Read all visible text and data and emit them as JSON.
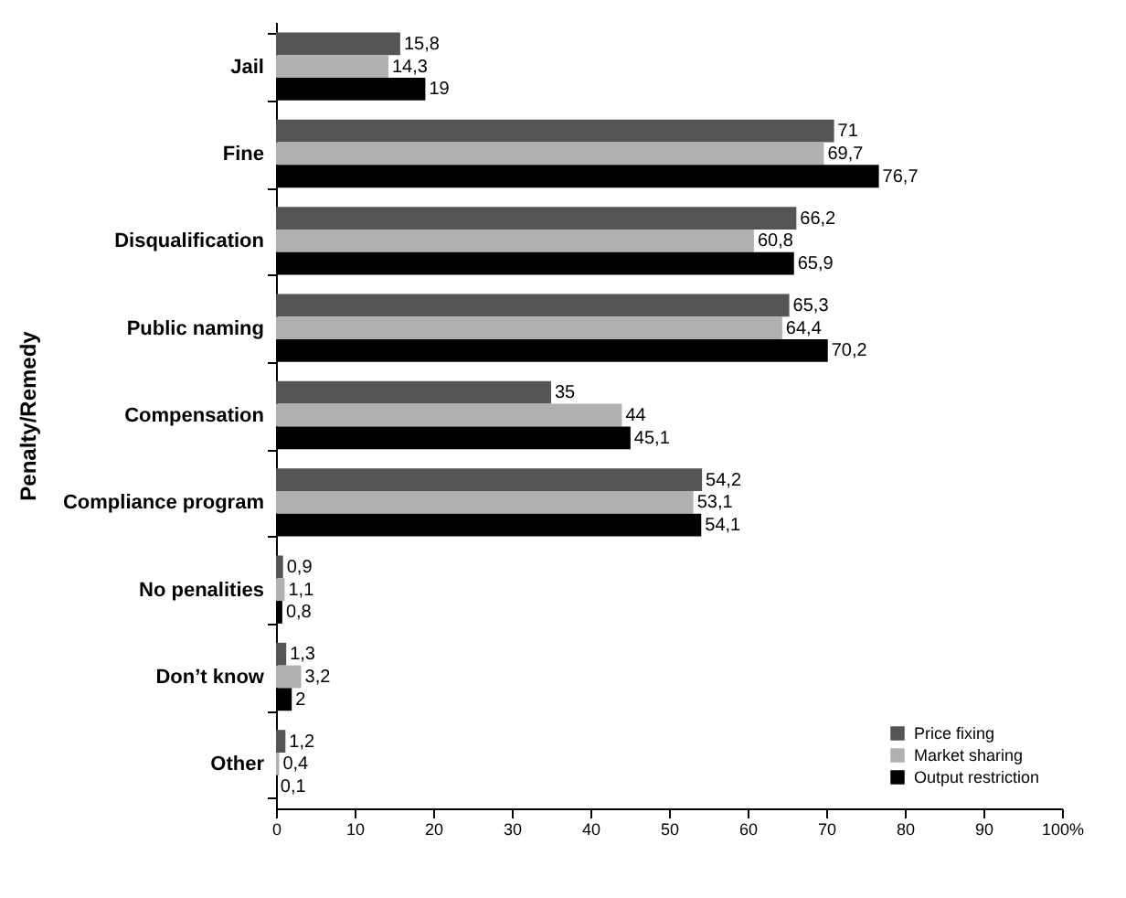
{
  "chart_data": {
    "type": "bar",
    "orientation": "horizontal",
    "ylabel": "Penalty/Remedy",
    "categories": [
      "Jail",
      "Fine",
      "Disqualification",
      "Public naming",
      "Compensation",
      "Compliance program",
      "No penalities",
      "Don’t know",
      "Other"
    ],
    "series": [
      {
        "name": "Price fixing",
        "color": "#555555",
        "values": [
          15.8,
          71,
          66.2,
          65.3,
          35,
          54.2,
          0.9,
          1.3,
          1.2
        ],
        "value_labels": [
          "15,8",
          "71",
          "66,2",
          "65,3",
          "35",
          "54,2",
          "0,9",
          "1,3",
          "1,2"
        ]
      },
      {
        "name": "Market sharing",
        "color": "#b0b0b0",
        "values": [
          14.3,
          69.7,
          60.8,
          64.4,
          44,
          53.1,
          1.1,
          3.2,
          0.4
        ],
        "value_labels": [
          "14,3",
          "69,7",
          "60,8",
          "64,4",
          "44",
          "53,1",
          "1,1",
          "3,2",
          "0,4"
        ]
      },
      {
        "name": "Output restriction",
        "color": "#000000",
        "values": [
          19,
          76.7,
          65.9,
          70.2,
          45.1,
          54.1,
          0.8,
          2,
          0.1
        ],
        "value_labels": [
          "19",
          "76,7",
          "65,9",
          "70,2",
          "45,1",
          "54,1",
          "0,8",
          "2",
          "0,1"
        ]
      }
    ],
    "xlim": [
      0,
      100
    ],
    "xticks": [
      0,
      10,
      20,
      30,
      40,
      50,
      60,
      70,
      80,
      90,
      {
        "value": 100,
        "label": "100%"
      }
    ],
    "grid": false,
    "legend": "bottom right"
  }
}
